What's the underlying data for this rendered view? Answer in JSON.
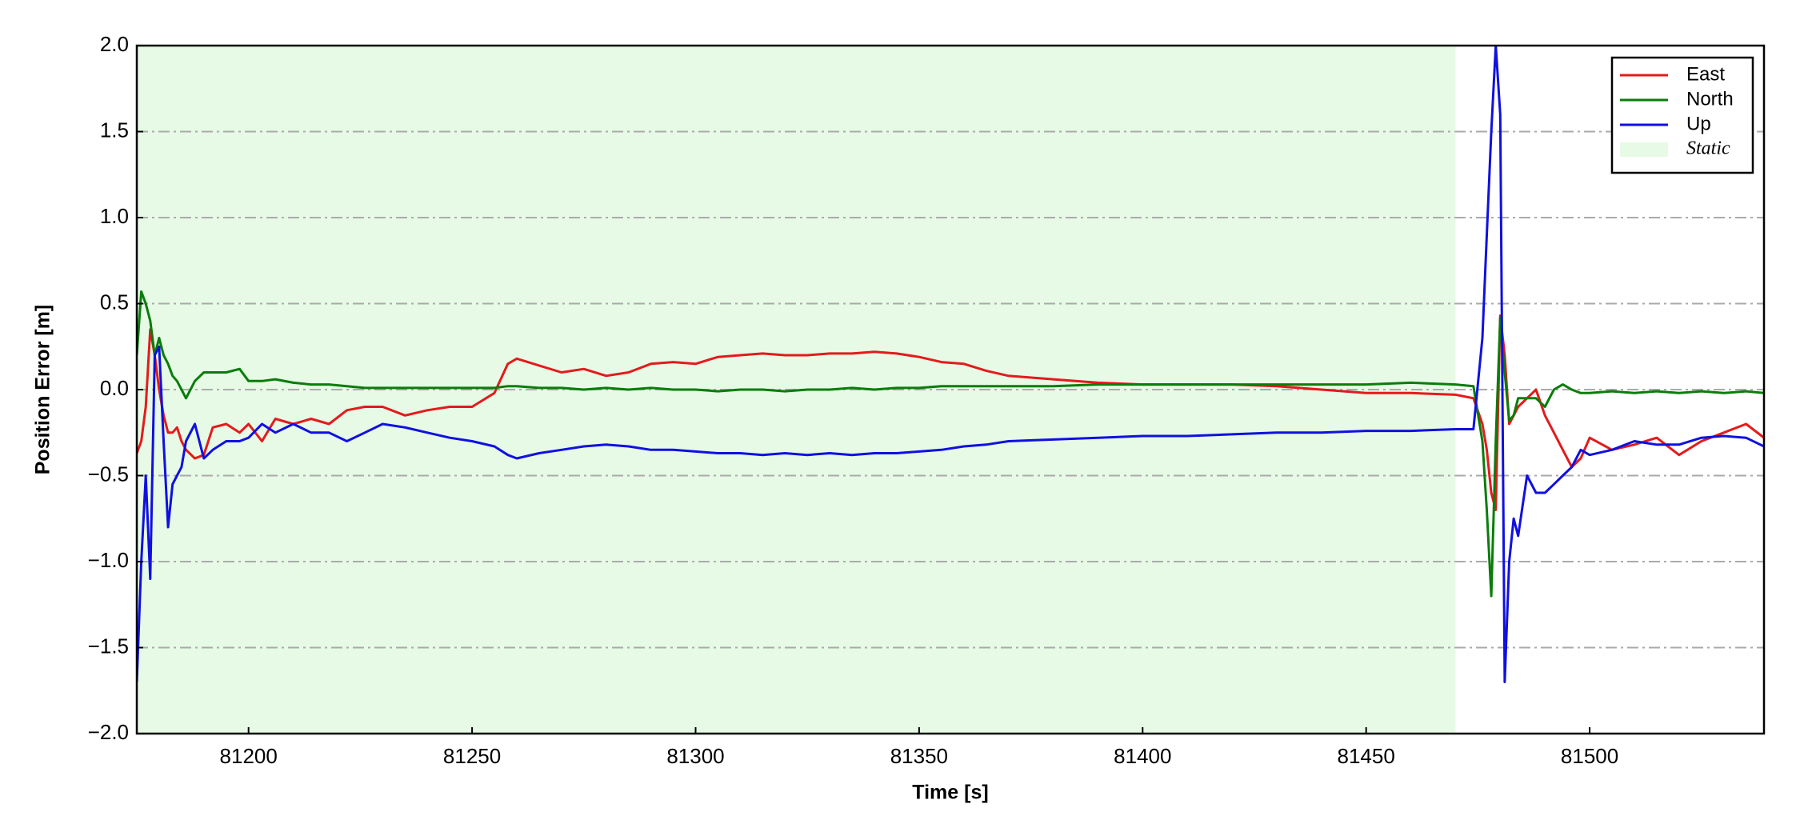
{
  "chart_data": {
    "type": "line",
    "xlabel": "Time [s]",
    "ylabel": "Position Error [m]",
    "x": [
      81175,
      81176,
      81177,
      81178,
      81179,
      81180,
      81181,
      81182,
      81183,
      81184,
      81185,
      81186,
      81188,
      81190,
      81192,
      81195,
      81198,
      81200,
      81203,
      81206,
      81210,
      81214,
      81218,
      81222,
      81226,
      81230,
      81235,
      81240,
      81245,
      81250,
      81255,
      81258,
      81260,
      81265,
      81270,
      81275,
      81280,
      81285,
      81290,
      81295,
      81300,
      81305,
      81310,
      81315,
      81320,
      81325,
      81330,
      81335,
      81340,
      81345,
      81350,
      81355,
      81360,
      81365,
      81370,
      81380,
      81390,
      81400,
      81410,
      81420,
      81430,
      81440,
      81450,
      81460,
      81470,
      81474,
      81476,
      81477,
      81478,
      81479,
      81480,
      81481,
      81482,
      81483,
      81484,
      81486,
      81488,
      81490,
      81492,
      81494,
      81496,
      81498,
      81500,
      81505,
      81510,
      81515,
      81520,
      81525,
      81530,
      81535,
      81539
    ],
    "series": [
      {
        "name": "East",
        "color": "#e41a1c",
        "values": [
          -0.37,
          -0.3,
          -0.1,
          0.35,
          0.2,
          0.0,
          -0.15,
          -0.25,
          -0.25,
          -0.22,
          -0.3,
          -0.35,
          -0.4,
          -0.38,
          -0.22,
          -0.2,
          -0.25,
          -0.2,
          -0.3,
          -0.17,
          -0.2,
          -0.17,
          -0.2,
          -0.12,
          -0.1,
          -0.1,
          -0.15,
          -0.12,
          -0.1,
          -0.1,
          -0.02,
          0.15,
          0.18,
          0.14,
          0.1,
          0.12,
          0.08,
          0.1,
          0.15,
          0.16,
          0.15,
          0.19,
          0.2,
          0.21,
          0.2,
          0.2,
          0.21,
          0.21,
          0.22,
          0.21,
          0.19,
          0.16,
          0.15,
          0.11,
          0.08,
          0.06,
          0.04,
          0.03,
          0.03,
          0.03,
          0.02,
          0.0,
          -0.02,
          -0.02,
          -0.03,
          -0.05,
          -0.2,
          -0.35,
          -0.6,
          -0.7,
          0.43,
          0.2,
          -0.2,
          -0.15,
          -0.1,
          -0.05,
          0.0,
          -0.15,
          -0.25,
          -0.35,
          -0.45,
          -0.4,
          -0.28,
          -0.35,
          -0.32,
          -0.28,
          -0.38,
          -0.3,
          -0.25,
          -0.2,
          -0.28
        ]
      },
      {
        "name": "North",
        "color": "#0a7d0a",
        "values": [
          0.2,
          0.57,
          0.5,
          0.4,
          0.2,
          0.3,
          0.2,
          0.15,
          0.08,
          0.05,
          0.0,
          -0.05,
          0.05,
          0.1,
          0.1,
          0.1,
          0.12,
          0.05,
          0.05,
          0.06,
          0.04,
          0.03,
          0.03,
          0.02,
          0.01,
          0.01,
          0.01,
          0.01,
          0.01,
          0.01,
          0.01,
          0.02,
          0.02,
          0.01,
          0.01,
          0.0,
          0.01,
          0.0,
          0.01,
          0.0,
          0.0,
          -0.01,
          0.0,
          0.0,
          -0.01,
          0.0,
          0.0,
          0.01,
          0.0,
          0.01,
          0.01,
          0.02,
          0.02,
          0.02,
          0.02,
          0.02,
          0.03,
          0.03,
          0.03,
          0.03,
          0.03,
          0.03,
          0.03,
          0.04,
          0.03,
          0.02,
          -0.3,
          -0.7,
          -1.2,
          -0.3,
          0.42,
          0.1,
          -0.18,
          -0.15,
          -0.05,
          -0.05,
          -0.05,
          -0.1,
          0.0,
          0.03,
          0.0,
          -0.02,
          -0.02,
          -0.01,
          -0.02,
          -0.01,
          -0.02,
          -0.01,
          -0.02,
          -0.01,
          -0.02
        ]
      },
      {
        "name": "Up",
        "color": "#1010e0",
        "values": [
          -1.7,
          -1.0,
          -0.5,
          -1.1,
          0.2,
          0.25,
          -0.3,
          -0.8,
          -0.55,
          -0.5,
          -0.45,
          -0.3,
          -0.2,
          -0.4,
          -0.35,
          -0.3,
          -0.3,
          -0.28,
          -0.2,
          -0.25,
          -0.2,
          -0.25,
          -0.25,
          -0.3,
          -0.25,
          -0.2,
          -0.22,
          -0.25,
          -0.28,
          -0.3,
          -0.33,
          -0.38,
          -0.4,
          -0.37,
          -0.35,
          -0.33,
          -0.32,
          -0.33,
          -0.35,
          -0.35,
          -0.36,
          -0.37,
          -0.37,
          -0.38,
          -0.37,
          -0.38,
          -0.37,
          -0.38,
          -0.37,
          -0.37,
          -0.36,
          -0.35,
          -0.33,
          -0.32,
          -0.3,
          -0.29,
          -0.28,
          -0.27,
          -0.27,
          -0.26,
          -0.25,
          -0.25,
          -0.24,
          -0.24,
          -0.23,
          -0.23,
          0.3,
          0.9,
          1.5,
          2.0,
          1.6,
          -1.7,
          -1.0,
          -0.75,
          -0.85,
          -0.5,
          -0.6,
          -0.6,
          -0.55,
          -0.5,
          -0.45,
          -0.35,
          -0.38,
          -0.35,
          -0.3,
          -0.32,
          -0.32,
          -0.28,
          -0.27,
          -0.28,
          -0.33
        ]
      }
    ],
    "spans": [
      {
        "name": "Static",
        "x0": 81175,
        "x1": 81470,
        "color": "#e6fae6"
      }
    ],
    "xlim": [
      81175,
      81539
    ],
    "xticks": [
      81200,
      81250,
      81300,
      81350,
      81400,
      81450,
      81500
    ],
    "ylim": [
      -2,
      2
    ],
    "yticks": [
      {
        "value": -2,
        "label": "−2.0"
      },
      {
        "value": -1.5,
        "label": "−1.5"
      },
      {
        "value": -1,
        "label": "−1.0"
      },
      {
        "value": -0.5,
        "label": "−0.5"
      },
      {
        "value": 0,
        "label": "0.0"
      },
      {
        "value": 0.5,
        "label": "0.5"
      },
      {
        "value": 1,
        "label": "1.0"
      },
      {
        "value": 1.5,
        "label": "1.5"
      },
      {
        "value": 2,
        "label": "2.0"
      }
    ],
    "grid": true,
    "legend": "upper right"
  }
}
